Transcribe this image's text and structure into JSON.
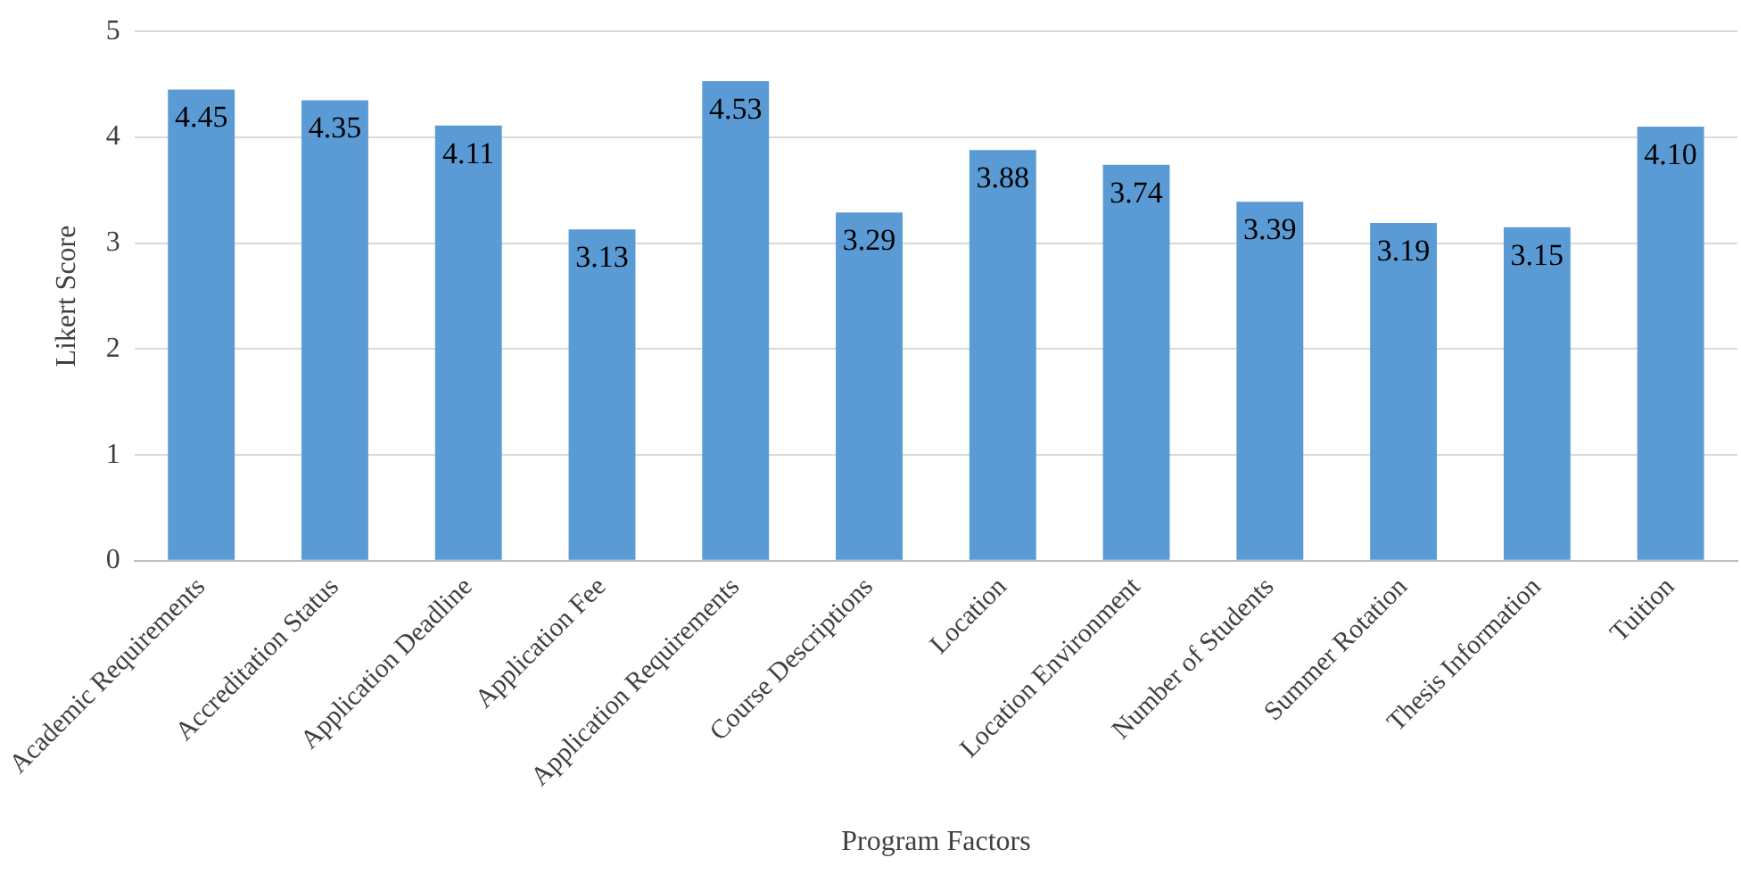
{
  "chart_data": {
    "type": "bar",
    "xlabel": "Program Factors",
    "ylabel": "Likert Score",
    "categories": [
      "Academic Requirements",
      "Accreditation Status",
      "Application Deadline",
      "Application Fee",
      "Application Requirements",
      "Course Descriptions",
      "Location",
      "Location Environment",
      "Number of Students",
      "Summer Rotation",
      "Thesis Information",
      "Tuition"
    ],
    "values": [
      4.45,
      4.35,
      4.11,
      3.13,
      4.53,
      3.29,
      3.88,
      3.74,
      3.39,
      3.19,
      3.15,
      4.1
    ],
    "value_labels": [
      "4.45",
      "4.35",
      "4.11",
      "3.13",
      "4.53",
      "3.29",
      "3.88",
      "3.74",
      "3.39",
      "3.19",
      "3.15",
      "4.10"
    ],
    "color": "#5b9bd5",
    "ylim": [
      0,
      5
    ],
    "yticks": [
      0,
      1,
      2,
      3,
      4,
      5
    ],
    "grid": "y",
    "legend": false
  }
}
